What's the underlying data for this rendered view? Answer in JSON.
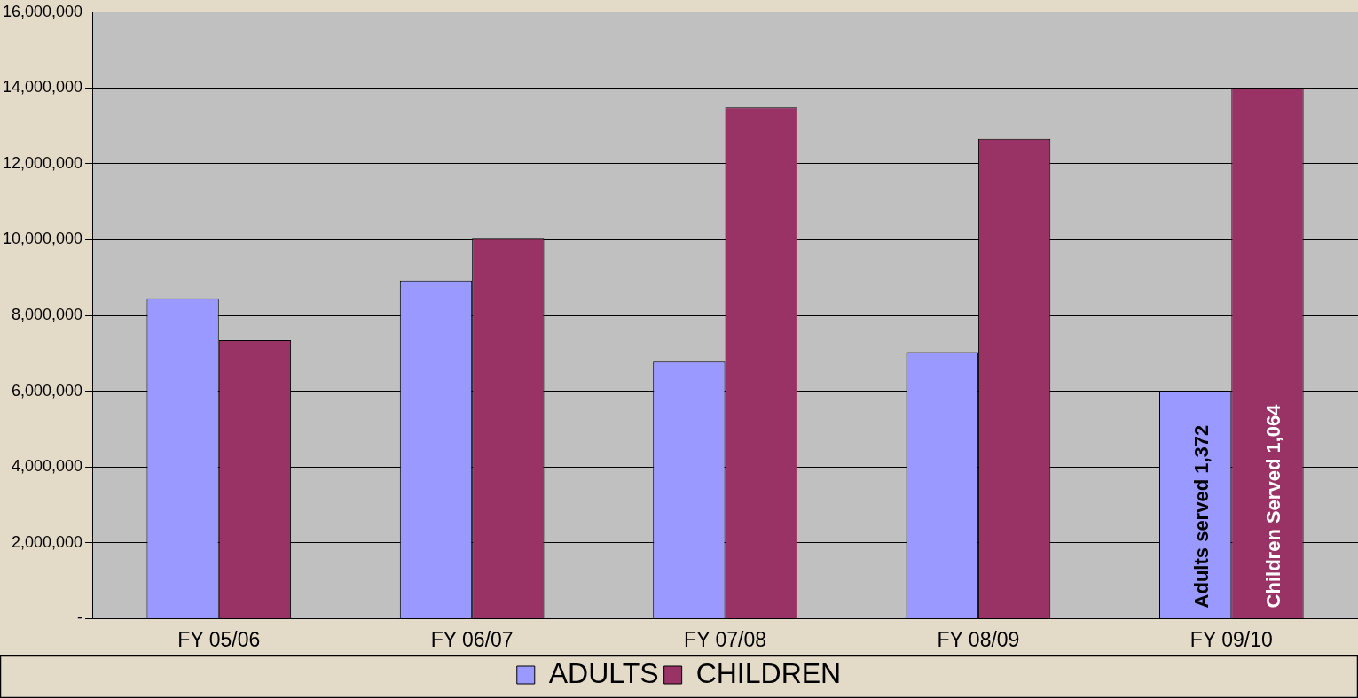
{
  "chart_data": {
    "type": "bar",
    "categories": [
      "FY 05/06",
      "FY 06/07",
      "FY 07/08",
      "FY 08/09",
      "FY 09/10"
    ],
    "series": [
      {
        "name": "ADULTS",
        "color": "#9999ff",
        "values": [
          8450000,
          8920000,
          6780000,
          7030000,
          6000000
        ]
      },
      {
        "name": "CHILDREN",
        "color": "#993366",
        "values": [
          7350000,
          10030000,
          13490000,
          12660000,
          14010000
        ]
      }
    ],
    "ylim": [
      0,
      16000000
    ],
    "yticks": [
      {
        "value": 0,
        "label": "-"
      },
      {
        "value": 2000000,
        "label": "2,000,000"
      },
      {
        "value": 4000000,
        "label": "4,000,000"
      },
      {
        "value": 6000000,
        "label": "6,000,000"
      },
      {
        "value": 8000000,
        "label": "8,000,000"
      },
      {
        "value": 10000000,
        "label": "10,000,000"
      },
      {
        "value": 12000000,
        "label": "12,000,000"
      },
      {
        "value": 14000000,
        "label": "14,000,000"
      },
      {
        "value": 16000000,
        "label": "16,000,000"
      }
    ],
    "grid": "y",
    "legend": "bottom",
    "annotations": [
      {
        "text": "Adults served 1,372",
        "x": "FY 09/10",
        "y": 0
      },
      {
        "text": "Children Served 1,064",
        "x": "FY 09/10",
        "y": 0
      }
    ]
  }
}
